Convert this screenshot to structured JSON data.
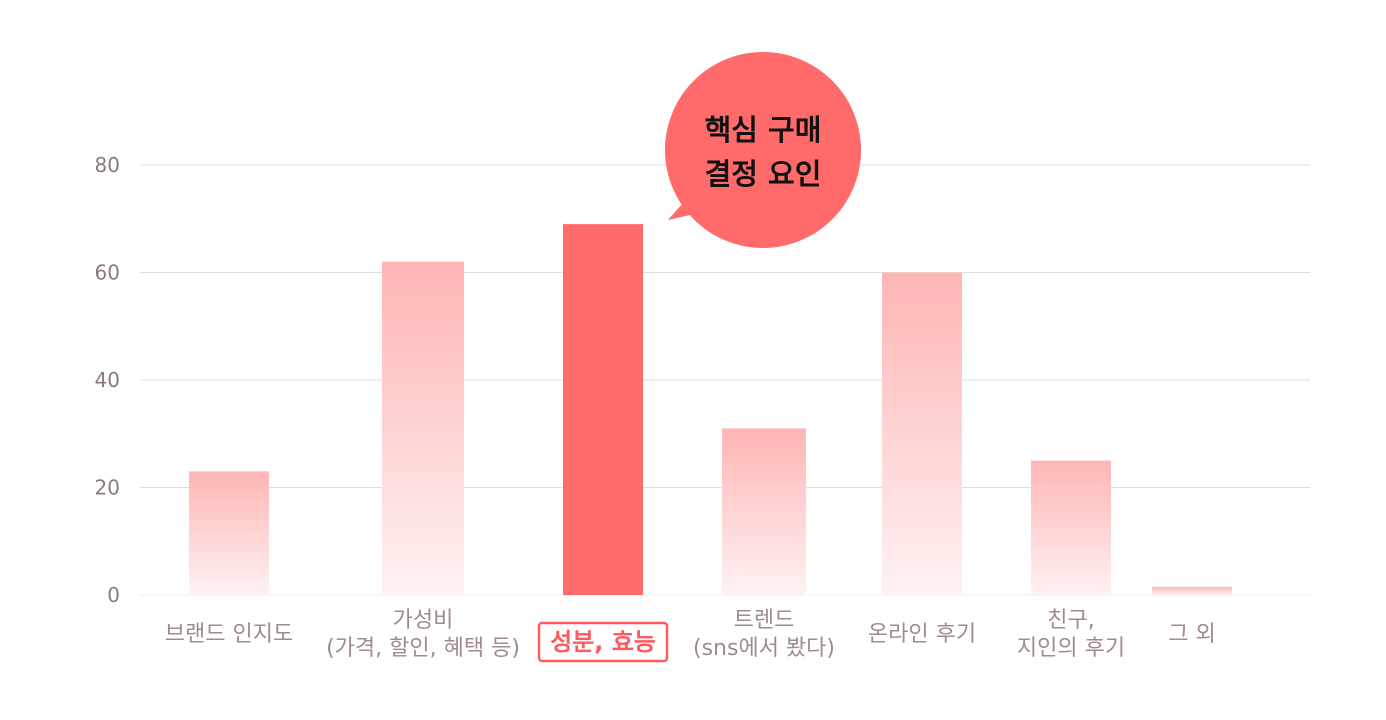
{
  "chart_data": {
    "type": "bar",
    "title": "",
    "xlabel": "",
    "ylabel": "",
    "ylim": [
      0,
      80
    ],
    "yticks": [
      0,
      20,
      40,
      60,
      80
    ],
    "grid": true,
    "categories": [
      [
        "브랜드 인지도"
      ],
      [
        "가성비",
        "(가격, 할인, 혜택 등)"
      ],
      [
        "성분, 효능"
      ],
      [
        "트렌드",
        "(sns에서 봤다)"
      ],
      [
        "온라인 후기"
      ],
      [
        "친구,",
        "지인의 후기"
      ],
      [
        "그 외"
      ]
    ],
    "values": [
      23,
      62,
      69,
      31,
      60,
      25,
      1.5
    ],
    "highlight_index": 2,
    "annotation": {
      "lines": [
        "핵심 구매",
        "결정 요인"
      ]
    },
    "colors": {
      "highlight": "#ff6b6b",
      "bar_top": "#ffb5b5",
      "bar_bottom": "#fff2f2",
      "callout": "#ff6b6b",
      "grid": "#dddddd",
      "highlight_label": "#ff5a5f"
    }
  }
}
